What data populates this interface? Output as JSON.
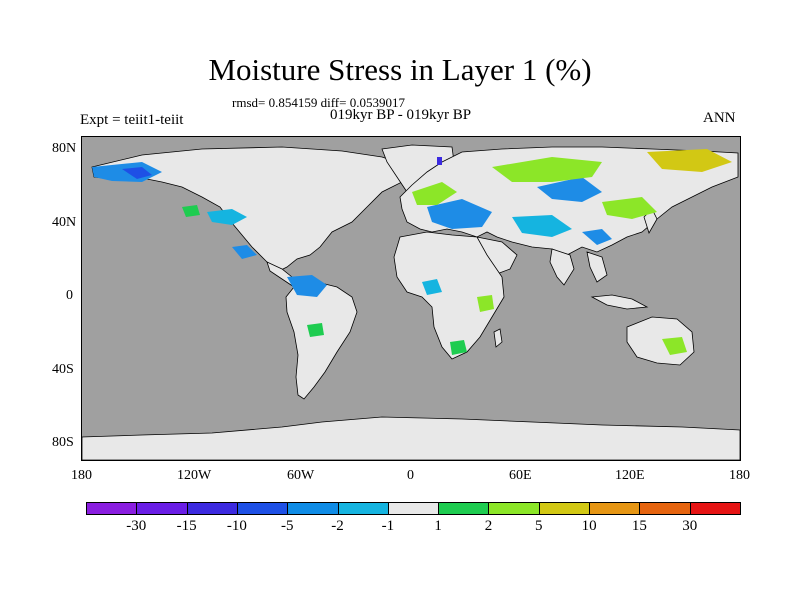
{
  "title": "Moisture Stress in Layer 1 (%)",
  "stats": "rmsd= 0.854159 diff= 0.0539017",
  "period": "019kyr BP - 019kyr BP",
  "experiment": "Expt = teiit1-teiit",
  "season": "ANN",
  "y_axis_ticks": [
    "80N",
    "40N",
    "0",
    "40S",
    "80S"
  ],
  "x_axis_ticks": [
    "180",
    "120W",
    "60W",
    "0",
    "60E",
    "120E",
    "180"
  ],
  "colorbar": {
    "labels": [
      "-30",
      "-15",
      "-10",
      "-5",
      "-2",
      "-1",
      "1",
      "2",
      "5",
      "10",
      "15",
      "30"
    ],
    "colors": [
      "#8a1ee0",
      "#6a1ee6",
      "#3c2ae0",
      "#1e50e6",
      "#0f8ce6",
      "#15b4e0",
      "#e8e8e8",
      "#1ecc50",
      "#8ce628",
      "#d2c814",
      "#e69614",
      "#e6640f",
      "#e61414"
    ]
  },
  "map": {
    "ocean_color": "#a0a0a0",
    "land_color": "#e8e8e8",
    "coastline_color": "#000000"
  }
}
